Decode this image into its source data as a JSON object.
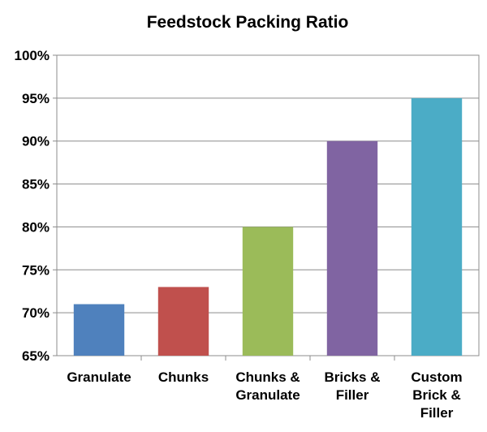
{
  "chart_data": {
    "type": "bar",
    "title": "Feedstock Packing Ratio",
    "xlabel": "",
    "ylabel": "",
    "categories": [
      [
        "Granulate"
      ],
      [
        "Chunks"
      ],
      [
        "Chunks &",
        "Granulate"
      ],
      [
        "Bricks &",
        "Filler"
      ],
      [
        "Custom",
        "Brick &",
        "Filler"
      ]
    ],
    "values": [
      71,
      73,
      80,
      90,
      95
    ],
    "colors": [
      "#4f81bd",
      "#c0504d",
      "#9bbb59",
      "#8064a2",
      "#4bacc6"
    ],
    "ylim": [
      65,
      100
    ],
    "yticks": [
      65,
      70,
      75,
      80,
      85,
      90,
      95,
      100
    ],
    "ytick_labels": [
      "65%",
      "70%",
      "75%",
      "80%",
      "85%",
      "90%",
      "95%",
      "100%"
    ],
    "grid": true,
    "legend": "none"
  }
}
